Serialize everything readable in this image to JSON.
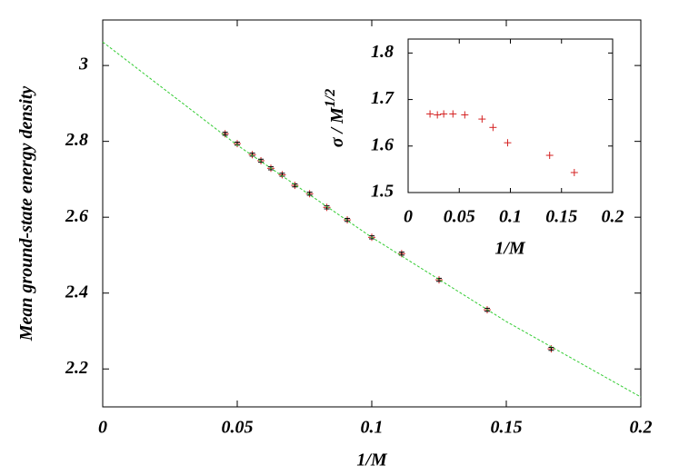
{
  "chart_data": [
    {
      "type": "scatter",
      "x_label": "1/M",
      "y_label": "Mean ground-state energy density",
      "xlim": [
        0,
        0.2
      ],
      "ylim": [
        2.1,
        3.12
      ],
      "xticks": [
        0,
        0.05,
        0.1,
        0.15,
        0.2
      ],
      "yticks": [
        2.2,
        2.4,
        2.6,
        2.8,
        3
      ],
      "series": [
        {
          "style": "errorbar",
          "color": "#d42020",
          "x": [
            0.0455,
            0.05,
            0.0556,
            0.0588,
            0.0625,
            0.0667,
            0.0714,
            0.0769,
            0.0833,
            0.0909,
            0.1,
            0.1111,
            0.125,
            0.1429,
            0.1667
          ],
          "values": [
            2.82,
            2.794,
            2.765,
            2.749,
            2.729,
            2.712,
            2.684,
            2.662,
            2.626,
            2.593,
            2.547,
            2.504,
            2.435,
            2.356,
            2.253
          ],
          "errors": [
            0.004,
            0.004,
            0.004,
            0.004,
            0.004,
            0.004,
            0.004,
            0.004,
            0.004,
            0.004,
            0.004,
            0.004,
            0.004,
            0.004,
            0.004
          ]
        },
        {
          "style": "dashed",
          "color": "#33cc33",
          "x": [
            0,
            0.05,
            0.1,
            0.15,
            0.2
          ],
          "values": [
            3.062,
            2.79,
            2.547,
            2.325,
            2.126
          ]
        }
      ]
    },
    {
      "type": "scatter",
      "x_label": "1/M",
      "y_label": "σ / M",
      "y_label_superscript": "1/2",
      "xlim": [
        0,
        0.2
      ],
      "ylim": [
        1.5,
        1.83
      ],
      "xticks": [
        0,
        0.05,
        0.1,
        0.15,
        0.2
      ],
      "yticks": [
        1.5,
        1.6,
        1.7,
        1.8
      ],
      "series": [
        {
          "style": "plus",
          "color": "#d42020",
          "x": [
            0.0214,
            0.0286,
            0.0348,
            0.0438,
            0.0554,
            0.0723,
            0.083,
            0.0973,
            0.1384,
            0.1625
          ],
          "values": [
            1.669,
            1.667,
            1.669,
            1.669,
            1.667,
            1.658,
            1.64,
            1.607,
            1.58,
            1.543
          ]
        }
      ]
    }
  ]
}
